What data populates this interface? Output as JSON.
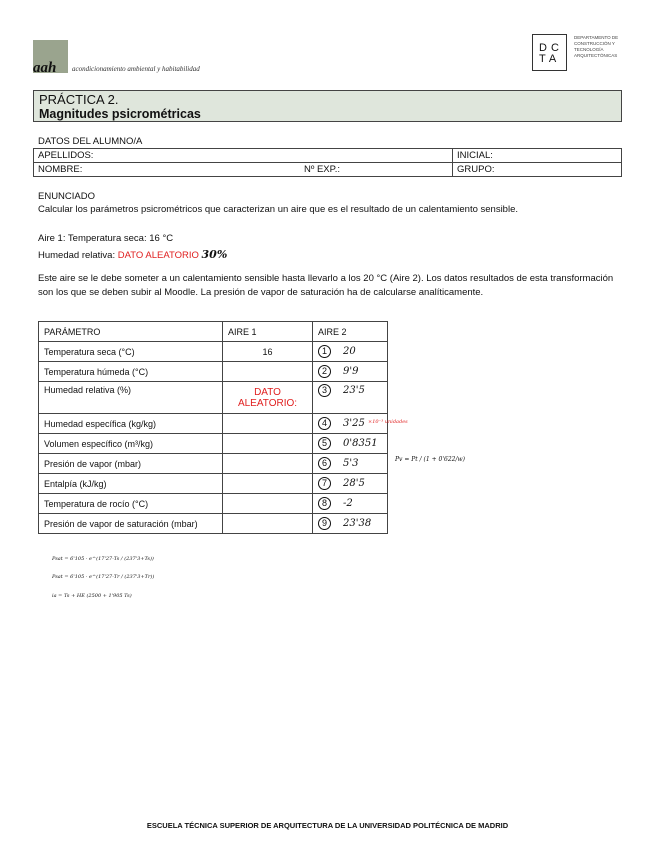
{
  "header": {
    "logo_text": "aah",
    "logo_subtitle": "acondicionamiento ambiental y habitabilidad",
    "dcta_logo": "DC TA",
    "department": "DEPARTAMENTO DE CONSTRUCCIÓN Y TECNOLOGÍA ARQUITECTÓNICAS"
  },
  "title": {
    "line1": "PRÁCTICA 2.",
    "line2": "Magnitudes psicrométricas"
  },
  "student": {
    "heading": "DATOS DEL ALUMNO/A",
    "apellidos": "APELLIDOS:",
    "inicial": "INICIAL:",
    "nombre": "NOMBRE:",
    "exp": "Nº EXP.:",
    "grupo": "GRUPO:"
  },
  "statement": {
    "heading": "ENUNCIADO",
    "text": "Calcular los parámetros psicrométricos que caracterizan un aire que es el resultado de un calentamiento sensible.",
    "aire1": "Aire 1: Temperatura seca: 16 °C",
    "hr_label": "Humedad relativa:",
    "hr_value": "DATO ALEATORIO",
    "hr_handwritten": "30%",
    "paragraph": "Este aire se le debe someter a un calentamiento sensible hasta llevarlo a los 20 °C (Aire 2). Los datos resultados de esta transformación son los que se deben subir al Moodle. La presión de vapor de saturación ha de calcularse analíticamente."
  },
  "table": {
    "headers": [
      "PARÁMETRO",
      "AIRE 1",
      "AIRE 2"
    ],
    "rows": [
      {
        "param": "Temperatura seca (°C)",
        "aire1": "16",
        "num": "1",
        "aire2": "20"
      },
      {
        "param": "Temperatura húmeda (°C)",
        "aire1": "",
        "num": "2",
        "aire2": "9'9"
      },
      {
        "param": "Humedad relativa (%)",
        "aire1": "DATO ALEATORIO:",
        "num": "3",
        "aire2": "23'5"
      },
      {
        "param": "Humedad específica (kg/kg)",
        "aire1": "",
        "num": "4",
        "aire2": "3'25"
      },
      {
        "param": "Volumen específico (m³/kg)",
        "aire1": "",
        "num": "5",
        "aire2": "0'8351"
      },
      {
        "param": "Presión de vapor (mbar)",
        "aire1": "",
        "num": "6",
        "aire2": "5'3"
      },
      {
        "param": "Entalpía (kJ/kg)",
        "aire1": "",
        "num": "7",
        "aire2": "28'5"
      },
      {
        "param": "Temperatura de rocío (°C)",
        "aire1": "",
        "num": "8",
        "aire2": "-2"
      },
      {
        "param": "Presión de vapor de saturación (mbar)",
        "aire1": "",
        "num": "9",
        "aire2": "23'38"
      }
    ]
  },
  "annotations": {
    "row4_note": "×10⁻³ unidades",
    "row6_formula": "Pv = Pt / (1 + 0'622/w)",
    "formula1": "Psat = 6'105 · e^(17'27·Ts / (237'3+Ts))",
    "formula2": "Psat = 6'105 · e^(17'27·Tr / (237'3+Tr))",
    "formula3": "ia = Ts + HE (2500 + 1'905 Ts)"
  },
  "footer": "ESCUELA TÉCNICA SUPERIOR DE ARQUITECTURA DE LA UNIVERSIDAD POLITÉCNICA DE MADRID",
  "colors": {
    "title_bg": "#dfe6dc",
    "accent_red": "#e02020"
  }
}
